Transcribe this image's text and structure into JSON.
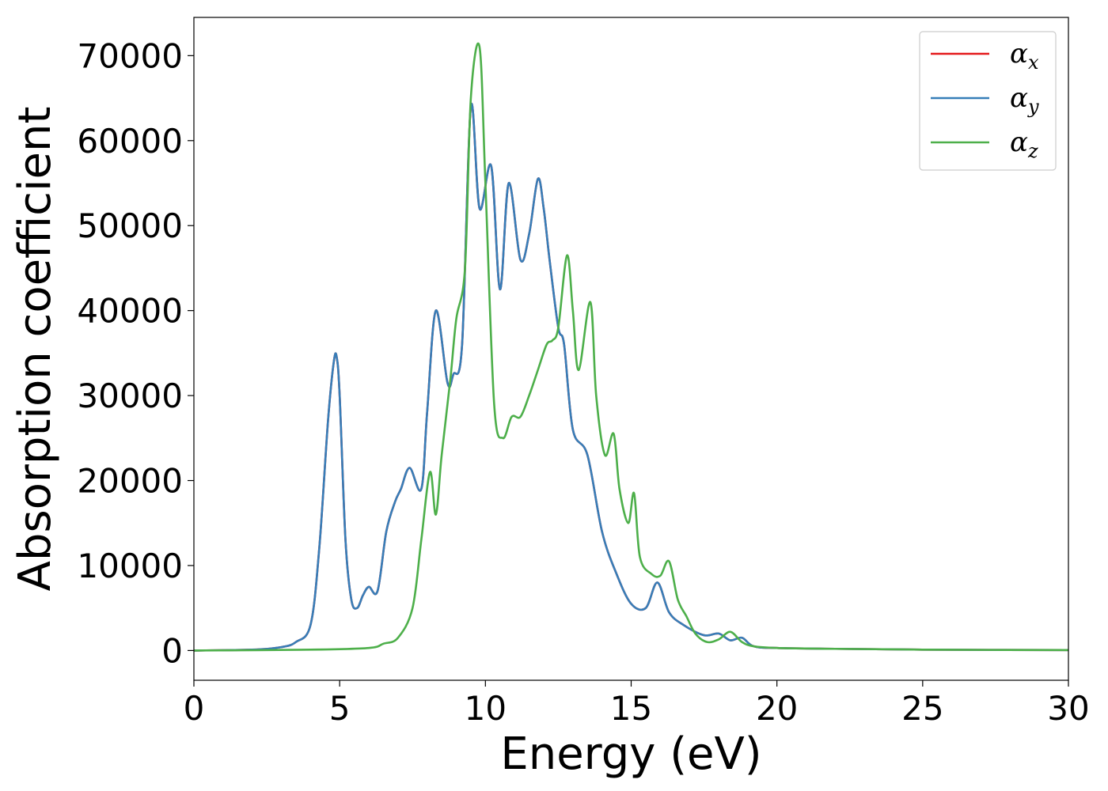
{
  "chart_data": {
    "type": "line",
    "title": "",
    "xlabel": "Energy (eV)",
    "ylabel": "Absorption coefficient",
    "xlim": [
      0,
      30
    ],
    "ylim": [
      -3500,
      74500
    ],
    "xticks": [
      0,
      5,
      10,
      15,
      20,
      25,
      30
    ],
    "yticks": [
      0,
      10000,
      20000,
      30000,
      40000,
      50000,
      60000,
      70000
    ],
    "grid": false,
    "legend_position": "top-right",
    "legend": [
      {
        "symbol": "α",
        "subscript": "x",
        "color": "#e41a1c"
      },
      {
        "symbol": "α",
        "subscript": "y",
        "color": "#377eb8"
      },
      {
        "symbol": "α",
        "subscript": "z",
        "color": "#4daf4a"
      }
    ],
    "series": [
      {
        "name": "α_x",
        "color": "#e41a1c",
        "x": [
          0,
          2,
          3,
          3.5,
          4,
          4.3,
          4.6,
          4.8,
          4.9,
          5.0,
          5.2,
          5.4,
          5.6,
          5.8,
          6.0,
          6.3,
          6.6,
          6.9,
          7.1,
          7.4,
          7.8,
          8.0,
          8.3,
          8.7,
          8.9,
          9.2,
          9.5,
          9.8,
          10.2,
          10.5,
          10.8,
          11.2,
          11.5,
          11.8,
          12.0,
          12.2,
          12.5,
          12.7,
          13.0,
          13.5,
          14.0,
          14.5,
          15.0,
          15.5,
          15.9,
          16.3,
          16.8,
          17.5,
          18.0,
          18.4,
          18.8,
          19.2,
          20,
          22,
          25,
          30
        ],
        "y": [
          0,
          100,
          400,
          1000,
          3000,
          12000,
          27000,
          34000,
          34500,
          30000,
          13000,
          6000,
          5000,
          6500,
          7500,
          7000,
          14000,
          17500,
          19000,
          21500,
          19000,
          28000,
          40000,
          31500,
          32500,
          36000,
          64000,
          52000,
          57000,
          42500,
          55000,
          46000,
          49000,
          55500,
          52000,
          46000,
          38000,
          36000,
          26000,
          23000,
          14000,
          9000,
          5500,
          5000,
          8000,
          4500,
          3000,
          1800,
          2000,
          1200,
          1500,
          500,
          300,
          200,
          100,
          50
        ]
      },
      {
        "name": "α_y",
        "color": "#377eb8",
        "x": [
          0,
          2,
          3,
          3.5,
          4,
          4.3,
          4.6,
          4.8,
          4.9,
          5.0,
          5.2,
          5.4,
          5.6,
          5.8,
          6.0,
          6.3,
          6.6,
          6.9,
          7.1,
          7.4,
          7.8,
          8.0,
          8.3,
          8.7,
          8.9,
          9.2,
          9.5,
          9.8,
          10.2,
          10.5,
          10.8,
          11.2,
          11.5,
          11.8,
          12.0,
          12.2,
          12.5,
          12.7,
          13.0,
          13.5,
          14.0,
          14.5,
          15.0,
          15.5,
          15.9,
          16.3,
          16.8,
          17.5,
          18.0,
          18.4,
          18.8,
          19.2,
          20,
          22,
          25,
          30
        ],
        "y": [
          0,
          100,
          400,
          1000,
          3000,
          12000,
          27000,
          34000,
          34500,
          30000,
          13000,
          6000,
          5000,
          6500,
          7500,
          7000,
          14000,
          17500,
          19000,
          21500,
          19000,
          28000,
          40000,
          31500,
          32500,
          36000,
          64000,
          52000,
          57000,
          42500,
          55000,
          46000,
          49000,
          55500,
          52000,
          46000,
          38000,
          36000,
          26000,
          23000,
          14000,
          9000,
          5500,
          5000,
          8000,
          4500,
          3000,
          1800,
          2000,
          1200,
          1500,
          500,
          300,
          200,
          100,
          50
        ]
      },
      {
        "name": "α_z",
        "color": "#4daf4a",
        "x": [
          0,
          4,
          6,
          6.5,
          7.0,
          7.5,
          7.8,
          8.1,
          8.3,
          8.5,
          8.8,
          9.0,
          9.3,
          9.5,
          9.8,
          10.0,
          10.3,
          10.6,
          10.9,
          11.2,
          11.5,
          11.8,
          12.1,
          12.3,
          12.5,
          12.8,
          13.0,
          13.2,
          13.6,
          13.8,
          14.1,
          14.4,
          14.6,
          14.9,
          15.1,
          15.3,
          15.7,
          16.0,
          16.3,
          16.6,
          16.9,
          17.2,
          17.6,
          18.0,
          18.4,
          18.8,
          19.2,
          20,
          22,
          25,
          30
        ],
        "y": [
          0,
          100,
          300,
          800,
          1500,
          5000,
          13000,
          21000,
          16000,
          23000,
          32000,
          39000,
          45000,
          65000,
          71000,
          55000,
          29000,
          25000,
          27500,
          27500,
          30000,
          33000,
          36000,
          36500,
          38000,
          46500,
          40000,
          33000,
          41000,
          30000,
          23000,
          25500,
          19000,
          15000,
          18500,
          11000,
          9000,
          8800,
          10500,
          6000,
          4000,
          2000,
          1000,
          1300,
          2200,
          1000,
          500,
          300,
          200,
          100,
          50
        ]
      }
    ]
  }
}
